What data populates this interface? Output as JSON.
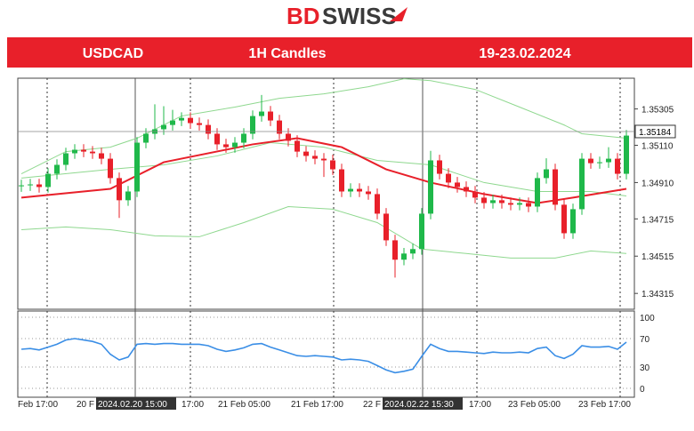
{
  "logo": {
    "part1": "BD",
    "part2": "SWISS"
  },
  "header": {
    "symbol": "USDCAD",
    "timeframe": "1H Candles",
    "dates": "19-23.02.2024"
  },
  "chart_data": {
    "type": "candlestick",
    "up_color": "#1fb84a",
    "down_color": "#e8202a",
    "open": [
      1.3489,
      1.34895,
      1.349,
      1.34886,
      1.34957,
      1.35005,
      1.35067,
      1.35086,
      1.35076,
      1.35067,
      1.35038,
      1.34934,
      1.34815,
      1.34862,
      1.35124,
      1.35172,
      1.35196,
      1.35219,
      1.35243,
      1.35257,
      1.35229,
      1.35219,
      1.35172,
      1.35115,
      1.351,
      1.35124,
      1.35172,
      1.35267,
      1.35291,
      1.35243,
      1.35172,
      1.35134,
      1.35076,
      1.35053,
      1.35038,
      1.35029,
      1.34981,
      1.34862,
      1.34876,
      1.34862,
      1.34848,
      1.34743,
      1.346,
      1.34496,
      1.34529,
      1.34553,
      1.34743,
      1.35029,
      1.34957,
      1.3491,
      1.34886,
      1.34862,
      1.34829,
      1.348,
      1.34815,
      1.348,
      1.34791,
      1.348,
      1.34781,
      1.34934,
      1.34981,
      1.34791,
      1.34638,
      1.34767,
      1.35038,
      1.35014,
      1.35019,
      1.35038,
      1.34957
    ],
    "high": [
      1.34925,
      1.3493,
      1.3493,
      1.34987,
      1.35035,
      1.35097,
      1.35116,
      1.35116,
      1.35106,
      1.35097,
      1.35068,
      1.34964,
      1.34892,
      1.35154,
      1.35202,
      1.3533,
      1.3532,
      1.353,
      1.35287,
      1.35287,
      1.35259,
      1.35249,
      1.35202,
      1.35145,
      1.35154,
      1.35202,
      1.35297,
      1.3538,
      1.35321,
      1.35273,
      1.35202,
      1.35164,
      1.35106,
      1.35083,
      1.35068,
      1.35059,
      1.35011,
      1.34906,
      1.34906,
      1.34892,
      1.34878,
      1.34773,
      1.3463,
      1.34559,
      1.34583,
      1.34773,
      1.3508,
      1.35059,
      1.34987,
      1.3494,
      1.34916,
      1.34892,
      1.34859,
      1.34845,
      1.34845,
      1.3483,
      1.3483,
      1.3483,
      1.34964,
      1.3504,
      1.35011,
      1.34821,
      1.34797,
      1.35068,
      1.35068,
      1.35049,
      1.351,
      1.35068,
      1.35192
    ],
    "low": [
      1.3486,
      1.34865,
      1.34856,
      1.34856,
      1.34927,
      1.34975,
      1.35037,
      1.35046,
      1.35037,
      1.35008,
      1.34904,
      1.3472,
      1.34785,
      1.34832,
      1.35094,
      1.35142,
      1.35166,
      1.35189,
      1.35213,
      1.35199,
      1.35189,
      1.35142,
      1.35085,
      1.3507,
      1.3507,
      1.35094,
      1.35142,
      1.35237,
      1.35213,
      1.35142,
      1.35104,
      1.35046,
      1.35023,
      1.35008,
      1.3494,
      1.34951,
      1.34832,
      1.34832,
      1.34832,
      1.34818,
      1.34713,
      1.3457,
      1.344,
      1.34466,
      1.34499,
      1.34523,
      1.34713,
      1.34927,
      1.3488,
      1.34856,
      1.34832,
      1.34799,
      1.3477,
      1.3477,
      1.3477,
      1.34761,
      1.34761,
      1.34751,
      1.34751,
      1.34904,
      1.34761,
      1.34608,
      1.34608,
      1.34737,
      1.34984,
      1.34984,
      1.34989,
      1.34927,
      1.34927
    ],
    "close": [
      1.34895,
      1.349,
      1.34886,
      1.34957,
      1.35005,
      1.35067,
      1.35086,
      1.35076,
      1.35067,
      1.35038,
      1.34934,
      1.34815,
      1.34862,
      1.35124,
      1.35172,
      1.35196,
      1.35219,
      1.35243,
      1.35257,
      1.35229,
      1.35219,
      1.35172,
      1.35115,
      1.351,
      1.35124,
      1.35172,
      1.35267,
      1.35291,
      1.35243,
      1.35172,
      1.35134,
      1.35076,
      1.35053,
      1.35038,
      1.35029,
      1.34981,
      1.34862,
      1.34876,
      1.34862,
      1.34848,
      1.34743,
      1.346,
      1.34496,
      1.34529,
      1.34553,
      1.34743,
      1.35029,
      1.34957,
      1.3491,
      1.34886,
      1.34862,
      1.34829,
      1.348,
      1.34815,
      1.348,
      1.34791,
      1.348,
      1.34781,
      1.34934,
      1.34981,
      1.34791,
      1.34638,
      1.34767,
      1.35038,
      1.35014,
      1.35019,
      1.35038,
      1.34957,
      1.35162
    ],
    "overlays": [
      {
        "color": "#8fd88f",
        "x": [
          0,
          5,
          10,
          13,
          18,
          24,
          29,
          34,
          39,
          43,
          46,
          51,
          56,
          61,
          63,
          68
        ],
        "values": [
          1.34957,
          1.35076,
          1.351,
          1.35148,
          1.35267,
          1.35315,
          1.35362,
          1.35386,
          1.35424,
          1.35467,
          1.35457,
          1.3541,
          1.35315,
          1.35219,
          1.35172,
          1.35148
        ]
      },
      {
        "color": "#8fd88f",
        "x": [
          0,
          10,
          16,
          22,
          28,
          34,
          40,
          46,
          52,
          58,
          64,
          68
        ],
        "values": [
          1.34934,
          1.34981,
          1.35005,
          1.35053,
          1.35124,
          1.351,
          1.35029,
          1.35005,
          1.3491,
          1.34862,
          1.34862,
          1.34838
        ]
      },
      {
        "color": "#8fd88f",
        "x": [
          0,
          5,
          10,
          15,
          20,
          25,
          30,
          35,
          40,
          45,
          50,
          55,
          60,
          64,
          68
        ],
        "values": [
          1.34657,
          1.34672,
          1.34657,
          1.34624,
          1.34619,
          1.34695,
          1.34781,
          1.34767,
          1.34695,
          1.34553,
          1.34529,
          1.34505,
          1.34505,
          1.34543,
          1.34529
        ]
      },
      {
        "color": "#e8202a",
        "x": [
          0,
          10,
          16,
          26,
          31,
          36,
          41,
          46,
          52,
          58,
          62,
          68
        ],
        "values": [
          1.34829,
          1.34876,
          1.35019,
          1.35115,
          1.35148,
          1.351,
          1.34981,
          1.3491,
          1.34848,
          1.348,
          1.34829,
          1.34876
        ]
      }
    ],
    "ylim": [
      1.3423,
      1.3547
    ],
    "yticks": [
      1.35305,
      {
        "value": 1.3511,
        "label": "1.35110"
      },
      {
        "value": 1.3491,
        "label": "1.34910"
      },
      1.34715,
      1.34515,
      1.34315
    ],
    "last_price": 1.35184,
    "rsi": {
      "color": "#3a8ee6",
      "ylim": [
        -12.5,
        108.75
      ],
      "yticks": [
        100,
        70,
        30,
        0
      ],
      "values": [
        55,
        56,
        54,
        58,
        62,
        68,
        70,
        68,
        66,
        62,
        48,
        40,
        44,
        62,
        63,
        62,
        63,
        63,
        62,
        62,
        62,
        60,
        55,
        52,
        54,
        57,
        62,
        63,
        58,
        54,
        50,
        46,
        45,
        46,
        45,
        44,
        40,
        41,
        40,
        38,
        32,
        26,
        22,
        24,
        27,
        45,
        62,
        56,
        52,
        52,
        51,
        50,
        49,
        51,
        50,
        50,
        51,
        50,
        56,
        58,
        46,
        42,
        48,
        60,
        58,
        58,
        59,
        55,
        65
      ]
    },
    "x_labels": [
      "Feb 17:00",
      "20 F",
      "2024.02.20 15:00",
      "17:00",
      "21 Feb 05:00",
      "21 Feb 17:00",
      "22 F",
      "2024.02.22 15:30",
      "17:00",
      "23 Feb 05:00",
      "23 Feb 17:00"
    ]
  }
}
